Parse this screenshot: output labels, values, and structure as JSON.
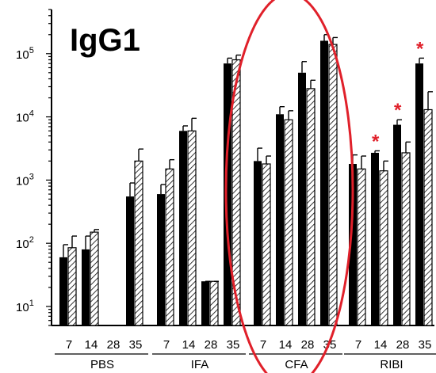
{
  "chart_data": {
    "type": "bar",
    "title": "IgG1",
    "log_scale": true,
    "ylim": [
      5,
      500000
    ],
    "y_ticks": [
      {
        "value": 10,
        "base": "10",
        "exp": "1"
      },
      {
        "value": 100,
        "base": "10",
        "exp": "2"
      },
      {
        "value": 1000,
        "base": "10",
        "exp": "3"
      },
      {
        "value": 10000,
        "base": "10",
        "exp": "4"
      },
      {
        "value": 100000,
        "base": "10",
        "exp": "5"
      }
    ],
    "groups": [
      {
        "label": "PBS",
        "days": [
          "7",
          "14",
          "28",
          "35"
        ],
        "solid": [
          60,
          80,
          null,
          550
        ],
        "hatched": [
          85,
          150,
          null,
          2000
        ],
        "solid_err": [
          95,
          130,
          null,
          900
        ],
        "hatched_err": [
          130,
          165,
          null,
          3100
        ],
        "stars": [
          false,
          false,
          false,
          false
        ]
      },
      {
        "label": "IFA",
        "days": [
          "7",
          "14",
          "28",
          "35"
        ],
        "solid": [
          600,
          6000,
          25,
          70000
        ],
        "hatched": [
          1500,
          6000,
          25,
          80000
        ],
        "solid_err": [
          850,
          7200,
          25,
          85000
        ],
        "hatched_err": [
          2100,
          9500,
          25,
          95000
        ],
        "stars": [
          false,
          false,
          false,
          false
        ]
      },
      {
        "label": "CFA",
        "days": [
          "7",
          "14",
          "28",
          "35"
        ],
        "solid": [
          2000,
          11000,
          50000,
          160000
        ],
        "hatched": [
          1800,
          9000,
          28000,
          140000
        ],
        "solid_err": [
          3200,
          14500,
          75000,
          200000
        ],
        "hatched_err": [
          2400,
          12500,
          38000,
          180000
        ],
        "stars": [
          false,
          false,
          false,
          false
        ]
      },
      {
        "label": "RIBI",
        "days": [
          "7",
          "14",
          "28",
          "35"
        ],
        "solid": [
          1800,
          2700,
          7500,
          70000
        ],
        "hatched": [
          1500,
          1400,
          2700,
          13000
        ],
        "solid_err": [
          2500,
          2900,
          9000,
          85000
        ],
        "hatched_err": [
          2400,
          2000,
          4000,
          25000
        ],
        "stars": [
          false,
          true,
          true,
          true
        ]
      }
    ],
    "star_symbol": "*",
    "colors": {
      "solid": "#000000",
      "hatched_stroke": "#000000",
      "star": "#e0202a",
      "ellipse": "#e0202a"
    },
    "highlight": {
      "shape": "ellipse",
      "group": "CFA"
    }
  }
}
